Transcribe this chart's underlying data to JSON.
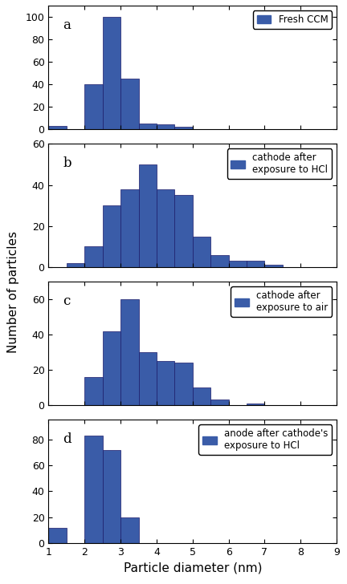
{
  "bar_color": "#3a5ca8",
  "bar_edgecolor": "#1a1a6a",
  "bin_edges": [
    1,
    1.5,
    2,
    2.5,
    3,
    3.5,
    4,
    4.5,
    5,
    5.5,
    6,
    6.5,
    7,
    7.5,
    8,
    8.5,
    9
  ],
  "panel_a": {
    "label": "a",
    "legend": "Fresh CCM",
    "values": [
      3,
      0,
      40,
      100,
      45,
      5,
      4,
      2,
      0,
      0,
      0,
      0,
      0,
      0,
      0,
      0
    ],
    "ylim": [
      0,
      110
    ],
    "yticks": [
      0,
      20,
      40,
      60,
      80,
      100
    ]
  },
  "panel_b": {
    "label": "b",
    "legend": "cathode after\nexposure to HCl",
    "values": [
      0,
      2,
      10,
      30,
      38,
      50,
      38,
      35,
      15,
      6,
      3,
      3,
      1,
      0,
      0,
      0
    ],
    "ylim": [
      0,
      60
    ],
    "yticks": [
      0,
      20,
      40,
      60
    ]
  },
  "panel_c": {
    "label": "c",
    "legend": "cathode after\nexposure to air",
    "values": [
      0,
      0,
      16,
      42,
      60,
      30,
      25,
      24,
      10,
      3,
      0,
      1,
      0,
      0,
      0,
      0
    ],
    "ylim": [
      0,
      70
    ],
    "yticks": [
      0,
      20,
      40,
      60
    ]
  },
  "panel_d": {
    "label": "d",
    "legend": "anode after cathode's\nexposure to HCl",
    "values": [
      12,
      0,
      83,
      72,
      20,
      0,
      0,
      0,
      0,
      0,
      0,
      0,
      0,
      0,
      0,
      0
    ],
    "ylim": [
      0,
      95
    ],
    "yticks": [
      0,
      20,
      40,
      60,
      80
    ]
  },
  "xlabel": "Particle diameter (nm)",
  "ylabel": "Number of particles",
  "xlim": [
    1,
    9
  ],
  "xticks": [
    1,
    2,
    3,
    4,
    5,
    6,
    7,
    8,
    9
  ],
  "background_color": "#ffffff",
  "figsize": [
    4.32,
    7.28
  ],
  "dpi": 100
}
